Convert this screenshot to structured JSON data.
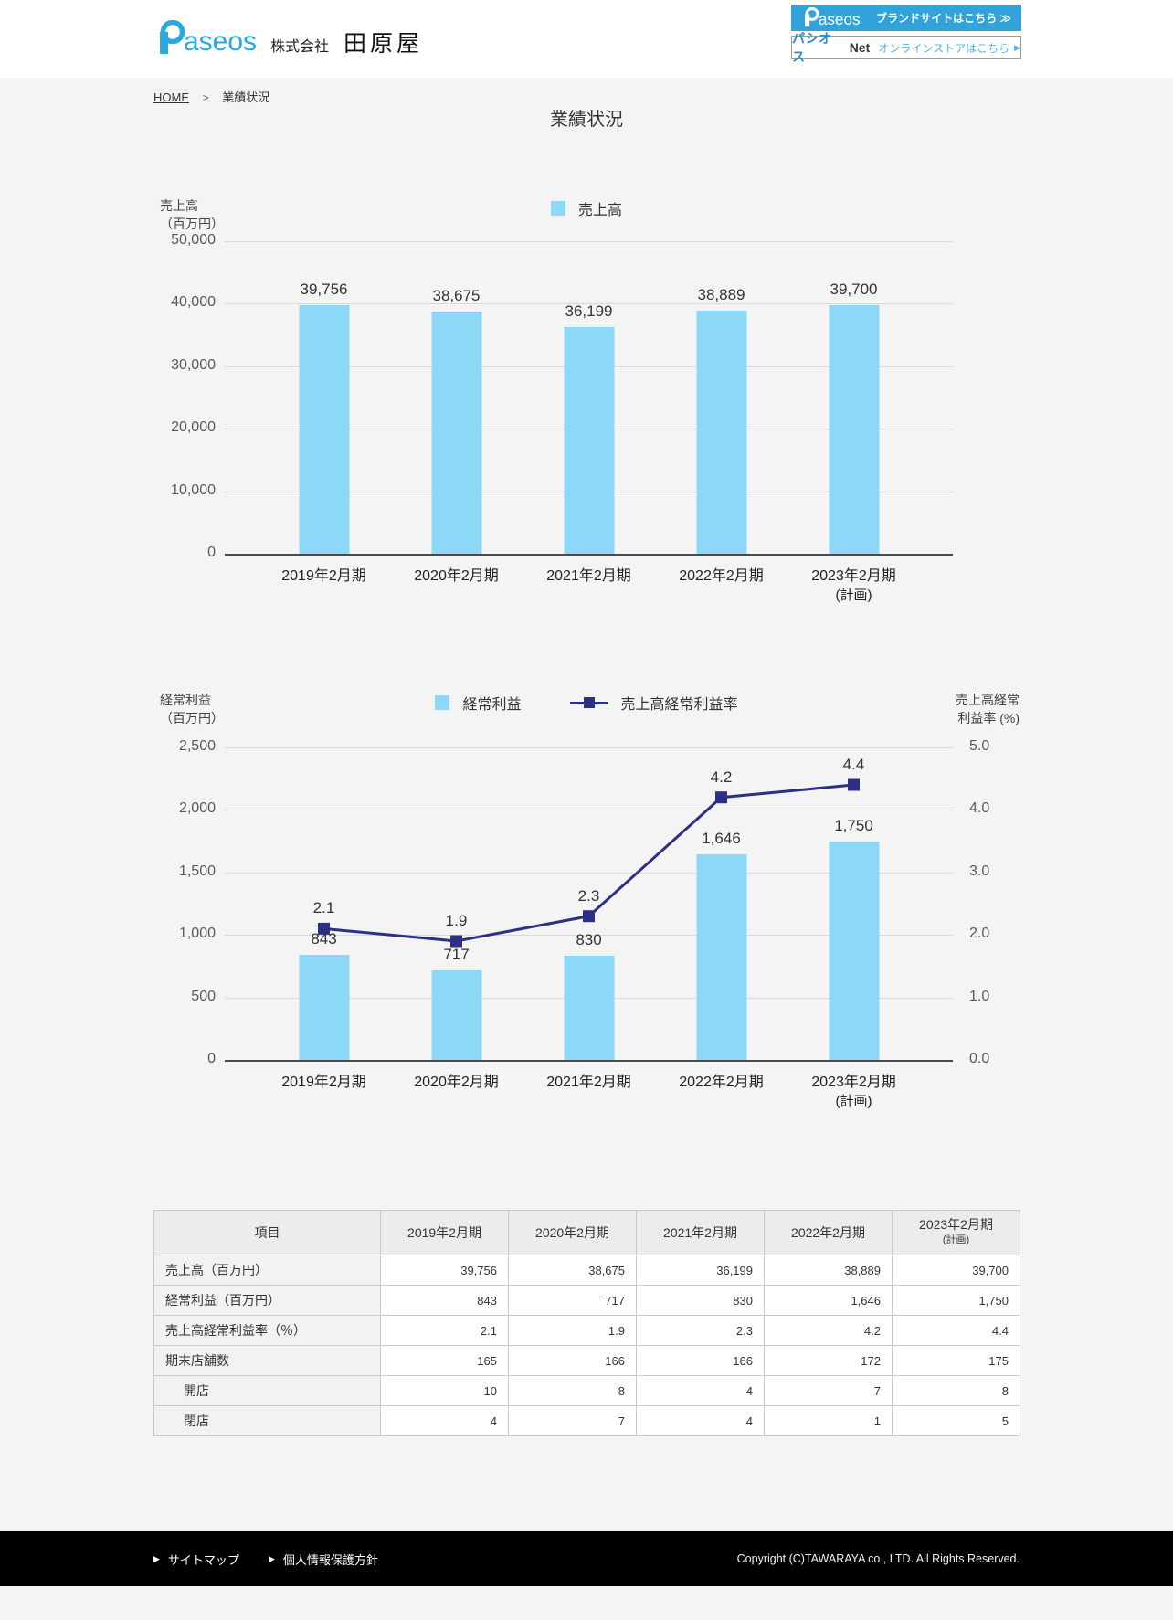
{
  "header": {
    "logo": {
      "text_rest": "aseos"
    },
    "company_prefix": "株式会社",
    "company_name": "田原屋",
    "buttons": {
      "brand": {
        "label": "ブランドサイトはこちら ≫"
      },
      "store": {
        "brand": "パシオス",
        "net": "Net",
        "label": "オンラインストアはこちら",
        "arrow": "▶"
      }
    }
  },
  "breadcrumb": {
    "home": "HOME",
    "separator": ">",
    "current": "業績状況"
  },
  "page_title": "業績状況",
  "chart_data": [
    {
      "type": "bar",
      "title": "売上高",
      "axis_left_title_lines": [
        "売上高",
        "（百万円）"
      ],
      "legend": [
        {
          "type": "bar",
          "label": "売上高",
          "color": "#8ed8f7"
        }
      ],
      "legend_position": "top-center",
      "categories": [
        "2019年2月期",
        "2020年2月期",
        "2021年2月期",
        "2022年2月期",
        "2023年2月期"
      ],
      "category_note": {
        "index": 4,
        "label": "(計画)"
      },
      "values": [
        39756,
        38675,
        36199,
        38889,
        39700
      ],
      "value_labels": [
        "39,756",
        "38,675",
        "36,199",
        "38,889",
        "39,700"
      ],
      "ylim": [
        0,
        50000
      ],
      "ytick_labels": [
        "50,000",
        "40,000",
        "30,000",
        "20,000",
        "10,000",
        "0"
      ],
      "bar_color": "#8ed8f7",
      "grid": true
    },
    {
      "type": "bar+line",
      "title": "経常利益・売上高経常利益率",
      "axis_left_title_lines": [
        "経常利益",
        "（百万円）"
      ],
      "axis_right_title_lines": [
        "売上高経常",
        "利益率 (%)"
      ],
      "legend": [
        {
          "type": "bar",
          "label": "経常利益",
          "color": "#8ed8f7"
        },
        {
          "type": "line",
          "label": "売上高経常利益率",
          "color": "#2b3084"
        }
      ],
      "legend_position": "top-center",
      "categories": [
        "2019年2月期",
        "2020年2月期",
        "2021年2月期",
        "2022年2月期",
        "2023年2月期"
      ],
      "category_note": {
        "index": 4,
        "label": "(計画)"
      },
      "series": [
        {
          "name": "経常利益",
          "type": "bar",
          "axis": "left",
          "values": [
            843,
            717,
            830,
            1646,
            1750
          ],
          "labels": [
            "843",
            "717",
            "830",
            "1,646",
            "1,750"
          ]
        },
        {
          "name": "売上高経常利益率",
          "type": "line",
          "axis": "right",
          "values": [
            2.1,
            1.9,
            2.3,
            4.2,
            4.4
          ],
          "labels": [
            "2.1",
            "1.9",
            "2.3",
            "4.2",
            "4.4"
          ]
        }
      ],
      "ylim_left": [
        0,
        2500
      ],
      "ylim_right": [
        0,
        5
      ],
      "ytick_labels_left": [
        "2,500",
        "2,000",
        "1,500",
        "1,000",
        "500",
        "0"
      ],
      "ytick_labels_right": [
        "5.0",
        "4.0",
        "3.0",
        "2.0",
        "1.0",
        "0.0"
      ],
      "bar_color": "#8ed8f7",
      "line_color": "#2b3084",
      "grid": true
    }
  ],
  "table": {
    "headers": [
      {
        "label": "項目"
      },
      {
        "label": "2019年2月期"
      },
      {
        "label": "2020年2月期"
      },
      {
        "label": "2021年2月期"
      },
      {
        "label": "2022年2月期"
      },
      {
        "label": "2023年2月期",
        "note": "(計画)"
      }
    ],
    "rows": [
      {
        "label": "売上高（百万円）",
        "indent": false,
        "values": [
          "39,756",
          "38,675",
          "36,199",
          "38,889",
          "39,700"
        ]
      },
      {
        "label": "経常利益（百万円）",
        "indent": false,
        "values": [
          "843",
          "717",
          "830",
          "1,646",
          "1,750"
        ]
      },
      {
        "label": "売上高経常利益率（％）",
        "indent": false,
        "values": [
          "2.1",
          "1.9",
          "2.3",
          "4.2",
          "4.4"
        ]
      },
      {
        "label": "期末店舗数",
        "indent": false,
        "values": [
          "165",
          "166",
          "166",
          "172",
          "175"
        ]
      },
      {
        "label": "開店",
        "indent": true,
        "values": [
          "10",
          "8",
          "4",
          "7",
          "8"
        ]
      },
      {
        "label": "閉店",
        "indent": true,
        "values": [
          "4",
          "7",
          "4",
          "1",
          "5"
        ]
      }
    ]
  },
  "footer": {
    "links": [
      {
        "label": "サイトマップ"
      },
      {
        "label": "個人情報保護方針"
      }
    ],
    "copyright": "Copyright (C)TAWARAYA co., LTD. All Rights Reserved."
  },
  "colors": {
    "accent_blue": "#2aa8e0",
    "button_blue": "#31a3da",
    "bar_fill": "#8ed8f7",
    "line_navy": "#2b3084",
    "page_bg": "#f4f4f5",
    "footer_bg": "#000000"
  }
}
